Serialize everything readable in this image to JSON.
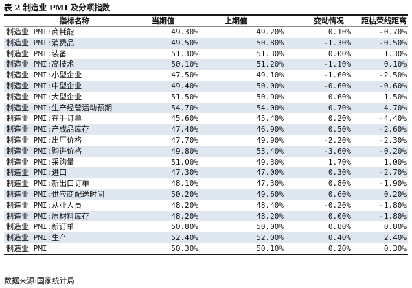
{
  "title": "表 2 制造业 PMI 及分项指数",
  "headers": [
    "指标名称",
    "当期值",
    "上期值",
    "变动情况",
    "距枯荣线距离"
  ],
  "rows": [
    [
      "制造业 PMI:商耗能",
      "49.30%",
      "49.20%",
      "0.10%",
      "-0.70%"
    ],
    [
      "制造业 PMI:消费品",
      "49.50%",
      "50.80%",
      "-1.30%",
      "-0.50%"
    ],
    [
      "制造业 PMI:装备",
      "51.30%",
      "51.30%",
      "0.00%",
      "1.30%"
    ],
    [
      "制造业 PMI:高技术",
      "50.10%",
      "51.20%",
      "-1.10%",
      "0.10%"
    ],
    [
      "制造业 PMI:小型企业",
      "47.50%",
      "49.10%",
      "-1.60%",
      "-2.50%"
    ],
    [
      "制造业 PMI:中型企业",
      "49.40%",
      "50.00%",
      "-0.60%",
      "-0.60%"
    ],
    [
      "制造业 PMI:大型企业",
      "51.50%",
      "50.90%",
      "0.60%",
      "1.50%"
    ],
    [
      "制造业 PMI:生产经营活动预期",
      "54.70%",
      "54.00%",
      "0.70%",
      "4.70%"
    ],
    [
      "制造业 PMI:在手订单",
      "45.60%",
      "45.40%",
      "0.20%",
      "-4.40%"
    ],
    [
      "制造业 PMI:产成品库存",
      "47.40%",
      "46.90%",
      "0.50%",
      "-2.60%"
    ],
    [
      "制造业 PMI:出厂价格",
      "47.70%",
      "49.90%",
      "-2.20%",
      "-2.30%"
    ],
    [
      "制造业 PMI:购进价格",
      "49.80%",
      "53.40%",
      "-3.60%",
      "-0.20%"
    ],
    [
      "制造业 PMI:采购量",
      "51.00%",
      "49.30%",
      "1.70%",
      "1.00%"
    ],
    [
      "制造业 PMI:进口",
      "47.30%",
      "47.00%",
      "0.30%",
      "-2.70%"
    ],
    [
      "制造业 PMI:新出口订单",
      "48.10%",
      "47.30%",
      "0.80%",
      "-1.90%"
    ],
    [
      "制造业 PMI:供应商配送时间",
      "50.20%",
      "49.60%",
      "0.60%",
      "0.20%"
    ],
    [
      "制造业 PMI:从业人员",
      "48.20%",
      "48.40%",
      "-0.20%",
      "-1.80%"
    ],
    [
      "制造业 PMI:原材料库存",
      "48.20%",
      "48.20%",
      "0.00%",
      "-1.80%"
    ],
    [
      "制造业 PMI:新订单",
      "50.80%",
      "50.00%",
      "0.80%",
      "0.80%"
    ],
    [
      "制造业 PMI:生产",
      "52.40%",
      "52.00%",
      "0.40%",
      "2.40%"
    ],
    [
      "制造业 PMI",
      "50.30%",
      "50.10%",
      "0.20%",
      "0.30%"
    ]
  ],
  "source": "数据来源:国家统计局",
  "colors": {
    "stripe": "#dfe7f1",
    "rule": "#1a1a1a"
  }
}
